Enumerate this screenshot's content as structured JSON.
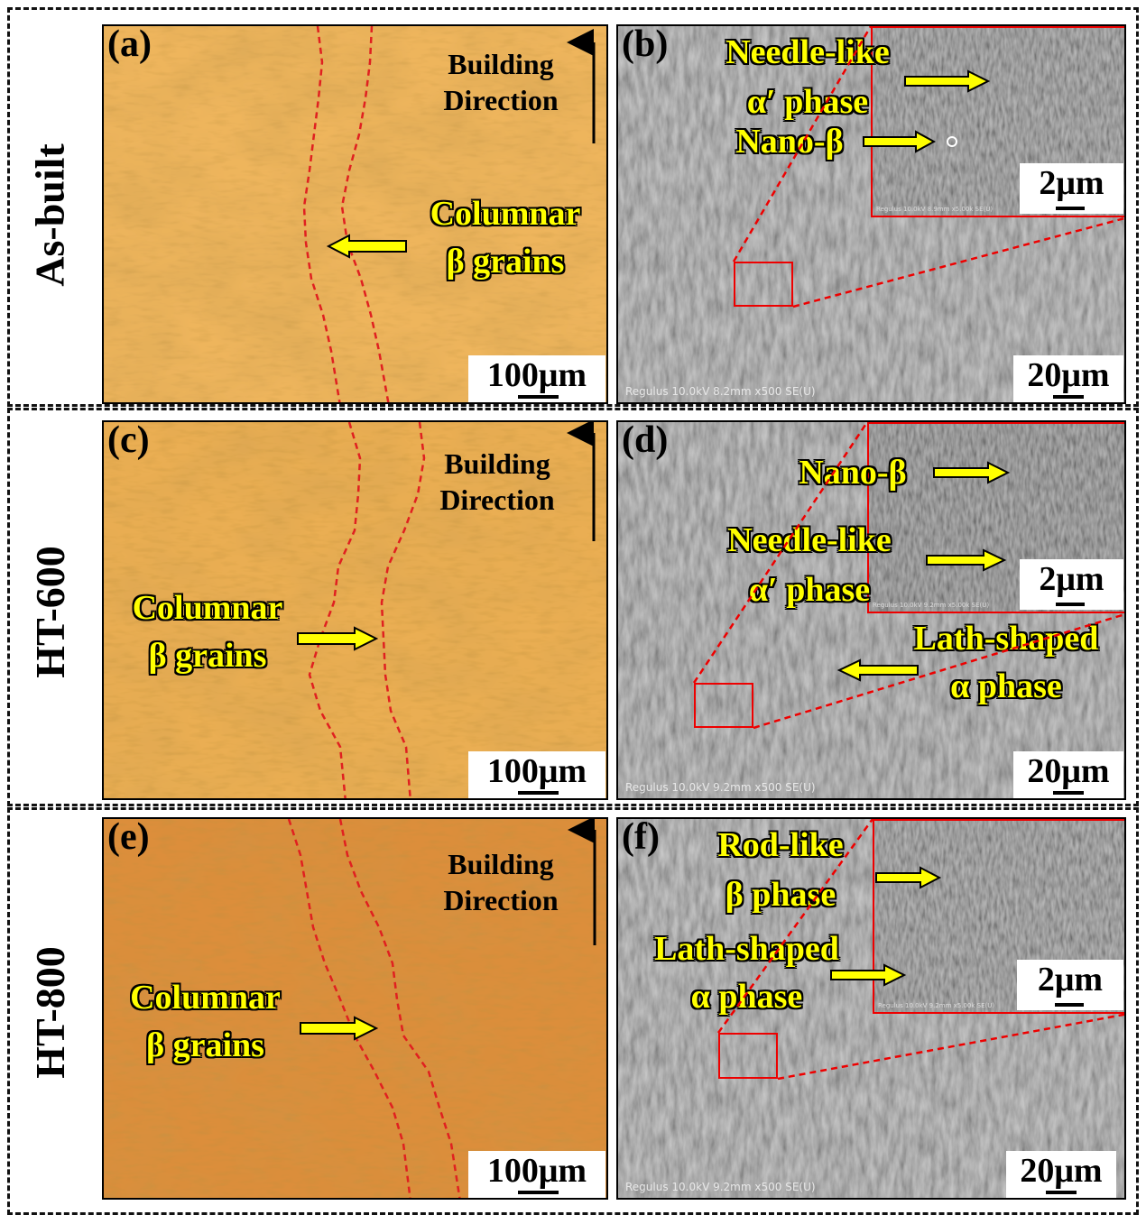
{
  "rows": [
    {
      "label": "As-built"
    },
    {
      "label": "HT-600"
    },
    {
      "label": "HT-800"
    }
  ],
  "panels": {
    "a": {
      "label": "(a)",
      "direction_line1": "Building",
      "direction_line2": "Direction",
      "ann1": "Columnar",
      "ann2": "β grains",
      "scale": "100μm"
    },
    "b": {
      "label": "(b)",
      "ann1": "Needle-like",
      "ann2": "α′ phase",
      "ann3": "Nano-β",
      "inset_scale": "2μm",
      "scale": "20μm",
      "meta": "Regulus 10.0kV 8.2mm x500 SE(U)",
      "inset_meta": "Regulus 10.0kV 8.9mm x5.00k SE(U)"
    },
    "c": {
      "label": "(c)",
      "direction_line1": "Building",
      "direction_line2": "Direction",
      "ann1": "Columnar",
      "ann2": "β grains",
      "scale": "100μm"
    },
    "d": {
      "label": "(d)",
      "ann1": "Nano-β",
      "ann2": "Needle-like",
      "ann3": "α′ phase",
      "ann4": "Lath-shaped",
      "ann5": "α phase",
      "inset_scale": "2μm",
      "scale": "20μm",
      "meta": "Regulus 10.0kV 9.2mm x500 SE(U)",
      "inset_meta": "Regulus 10.0kV 9.2mm x5.00k SE(U)"
    },
    "e": {
      "label": "(e)",
      "direction_line1": "Building",
      "direction_line2": "Direction",
      "ann1": "Columnar",
      "ann2": "β grains",
      "scale": "100μm"
    },
    "f": {
      "label": "(f)",
      "ann1": "Rod-like",
      "ann2": "β phase",
      "ann3": "Lath-shaped",
      "ann4": "α phase",
      "inset_scale": "2μm",
      "scale": "20μm",
      "meta": "Regulus 10.0kV 9.2mm x500 SE(U)",
      "inset_meta": "Regulus 10.0kV 9.2mm x5.00k SE(U)"
    }
  },
  "colors": {
    "arrow_fill": "#ffff00",
    "boundary": "#e02020",
    "inset_border": "#e00000",
    "om_asbuilt": "#e8aa50",
    "om_ht600": "#e6a040",
    "om_ht800": "#d88a35",
    "sem": "#8a8a8a"
  }
}
